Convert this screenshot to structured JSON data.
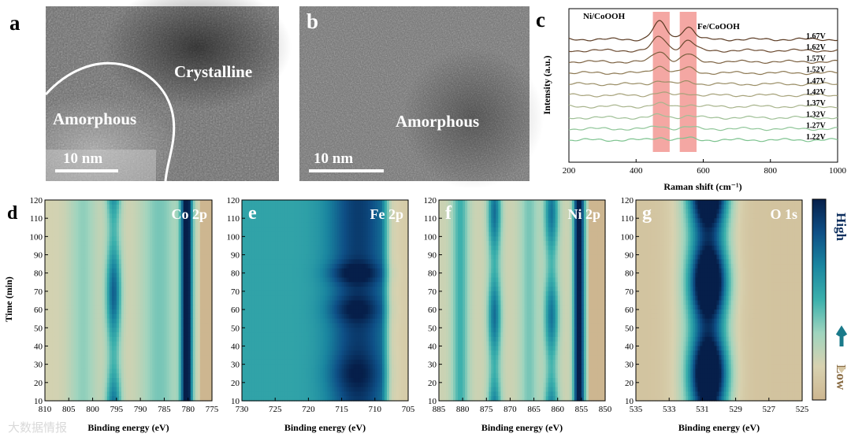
{
  "figure": {
    "panel_a": {
      "label": "a",
      "text_amorphous": "Amorphous",
      "text_crystalline": "Crystalline",
      "scale": "10 nm"
    },
    "panel_b": {
      "label": "b",
      "text_amorphous": "Amorphous",
      "scale": "10 nm"
    },
    "watermark": "大数据情报",
    "colorbar": {
      "high": "High",
      "low": "Low",
      "colors": [
        "#cdb690",
        "#d8d2b0",
        "#9fd4be",
        "#3bb0ac",
        "#1a86a0",
        "#0e4f86",
        "#061f4a"
      ]
    }
  },
  "chart_data": [
    {
      "id": "c",
      "type": "line",
      "title": "",
      "label": "c",
      "xlabel": "Raman shift (cm⁻¹)",
      "ylabel": "Intensity (a.u.)",
      "xlim": [
        200,
        1000
      ],
      "xticks": [
        "200",
        "400",
        "600",
        "800",
        "1000"
      ],
      "annotations": [
        "Ni/CoOOH",
        "Fe/CoOOH"
      ],
      "highlight_bands": [
        [
          450,
          500
        ],
        [
          530,
          580
        ]
      ],
      "series": [
        {
          "name": "1.67V",
          "color": "#5a3a22"
        },
        {
          "name": "1.62V",
          "color": "#6b4a30"
        },
        {
          "name": "1.57V",
          "color": "#7b6040"
        },
        {
          "name": "1.52V",
          "color": "#8c7852"
        },
        {
          "name": "1.47V",
          "color": "#9a8e66"
        },
        {
          "name": "1.42V",
          "color": "#a6a27a"
        },
        {
          "name": "1.37V",
          "color": "#a8b48c"
        },
        {
          "name": "1.32V",
          "color": "#9fc096"
        },
        {
          "name": "1.27V",
          "color": "#8fc698"
        },
        {
          "name": "1.22V",
          "color": "#7dc38f"
        }
      ]
    },
    {
      "id": "d",
      "type": "heatmap",
      "label": "d",
      "element": "Co 2p",
      "xlabel": "Binding energy (eV)",
      "ylabel": "Time (min)",
      "xlim": [
        810,
        775
      ],
      "ylim": [
        10,
        120
      ],
      "xticks": [
        "810",
        "805",
        "800",
        "795",
        "790",
        "785",
        "780",
        "775"
      ],
      "yticks": [
        "10",
        "20",
        "30",
        "40",
        "50",
        "60",
        "70",
        "80",
        "90",
        "100",
        "110",
        "120"
      ],
      "peaks_eV": [
        795.8,
        780.5
      ]
    },
    {
      "id": "e",
      "type": "heatmap",
      "label": "e",
      "element": "Fe 2p",
      "xlabel": "Binding energy (eV)",
      "ylabel": "",
      "xlim": [
        730,
        705
      ],
      "ylim": [
        10,
        120
      ],
      "xticks": [
        "730",
        "725",
        "720",
        "715",
        "710",
        "705"
      ],
      "yticks": [
        "10",
        "20",
        "30",
        "40",
        "50",
        "60",
        "70",
        "80",
        "90",
        "100",
        "110",
        "120"
      ],
      "peaks_eV": [
        712.5
      ]
    },
    {
      "id": "f",
      "type": "heatmap",
      "label": "f",
      "element": "Ni 2p",
      "xlabel": "Binding energy (eV)",
      "ylabel": "",
      "xlim": [
        885,
        850
      ],
      "ylim": [
        10,
        120
      ],
      "xticks": [
        "885",
        "880",
        "875",
        "870",
        "865",
        "860",
        "855",
        "850"
      ],
      "yticks": [
        "10",
        "20",
        "30",
        "40",
        "50",
        "60",
        "70",
        "80",
        "90",
        "100",
        "110",
        "120"
      ],
      "peaks_eV": [
        873,
        861,
        855.5
      ]
    },
    {
      "id": "g",
      "type": "heatmap",
      "label": "g",
      "element": "O 1s",
      "xlabel": "Binding energy (eV)",
      "ylabel": "",
      "xlim": [
        535,
        525
      ],
      "ylim": [
        10,
        120
      ],
      "xticks": [
        "535",
        "533",
        "531",
        "529",
        "527",
        "525"
      ],
      "yticks": [
        "10",
        "20",
        "30",
        "40",
        "50",
        "60",
        "70",
        "80",
        "90",
        "100",
        "110",
        "120"
      ],
      "peaks_eV": [
        530.5
      ]
    }
  ]
}
